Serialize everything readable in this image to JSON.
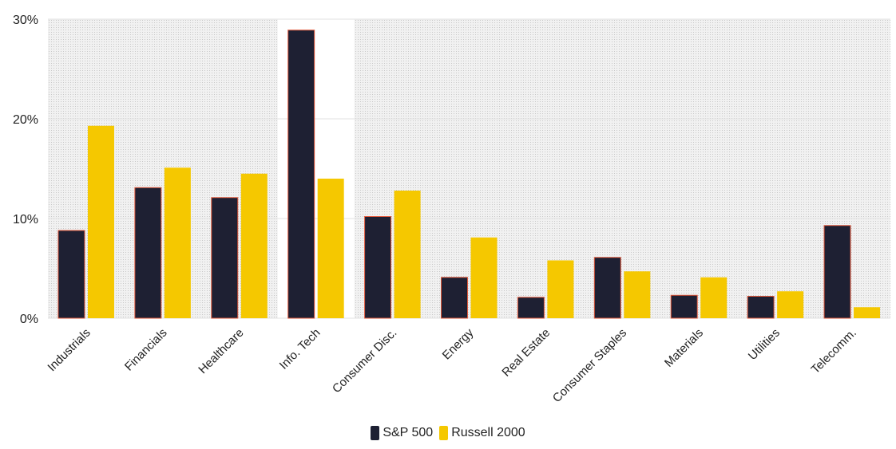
{
  "chart_data": {
    "type": "bar",
    "categories": [
      "Industrials",
      "Financials",
      "Healthcare",
      "Info. Tech",
      "Consumer Disc.",
      "Energy",
      "Real Estate",
      "Consumer Staples",
      "Materials",
      "Utilities",
      "Telecomm."
    ],
    "series": [
      {
        "name": "S&P 500",
        "color": "#1e2033",
        "values": [
          8.8,
          13.1,
          12.1,
          28.9,
          10.2,
          4.1,
          2.1,
          6.1,
          2.3,
          2.2,
          9.3
        ]
      },
      {
        "name": "Russell 2000",
        "color": "#f5c800",
        "values": [
          19.3,
          15.1,
          14.5,
          14.0,
          12.8,
          8.1,
          5.8,
          4.7,
          4.1,
          2.7,
          1.1
        ]
      }
    ],
    "y_ticks": [
      "0%",
      "10%",
      "20%",
      "30%"
    ],
    "ylim": [
      0,
      30
    ],
    "title": "",
    "xlabel": "",
    "ylabel": "",
    "legend_position": "bottom-center",
    "grid": true,
    "highlighted_category": "Info. Tech"
  }
}
